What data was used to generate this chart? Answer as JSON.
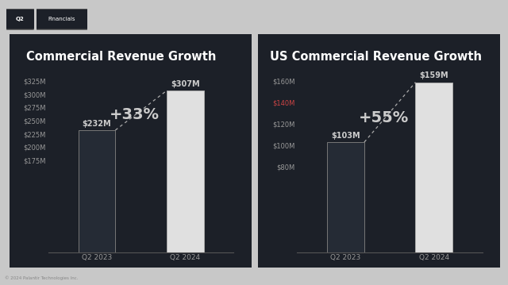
{
  "bg_color": "#c8c8c8",
  "panel_bg": "#1c2028",
  "tag_text": "Q2",
  "tag2_text": "Financials",
  "footer_text": "© 2024 Palantir Technologies Inc.",
  "left_chart": {
    "title": "Commercial Revenue Growth",
    "categories": [
      "Q2 2023",
      "Q2 2024"
    ],
    "values": [
      232,
      307
    ],
    "bar_labels": [
      "$232M",
      "$307M"
    ],
    "growth_label": "+33%",
    "ylim_min": 0,
    "ylim_max": 325,
    "yticks": [
      175,
      200,
      225,
      250,
      275,
      300,
      325
    ],
    "ytick_labels": [
      "$175M",
      "$200M",
      "$225M",
      "$250M",
      "$275M",
      "$300M",
      "$325M"
    ],
    "bar_color_2023": "#252b35",
    "bar_color_2024": "#e0e0e0",
    "bar_edge_color_2023": "#777777",
    "bar_edge_color_2024": "#aaaaaa"
  },
  "right_chart": {
    "title": "US Commercial Revenue Growth",
    "categories": [
      "Q2 2023",
      "Q2 2024"
    ],
    "values": [
      103,
      159
    ],
    "bar_labels": [
      "$103M",
      "$159M"
    ],
    "growth_label": "+55%",
    "ylim_min": 0,
    "ylim_max": 160,
    "yticks": [
      80,
      100,
      120,
      140,
      160
    ],
    "ytick_labels": [
      "$80M",
      "$100M",
      "$120M",
      "$140M",
      "$160M"
    ],
    "bar_color_2023": "#252b35",
    "bar_color_2024": "#e0e0e0",
    "bar_edge_color_2023": "#777777",
    "bar_edge_color_2024": "#aaaaaa",
    "highlight_tick": "$140M",
    "highlight_color": "#cc4444"
  }
}
